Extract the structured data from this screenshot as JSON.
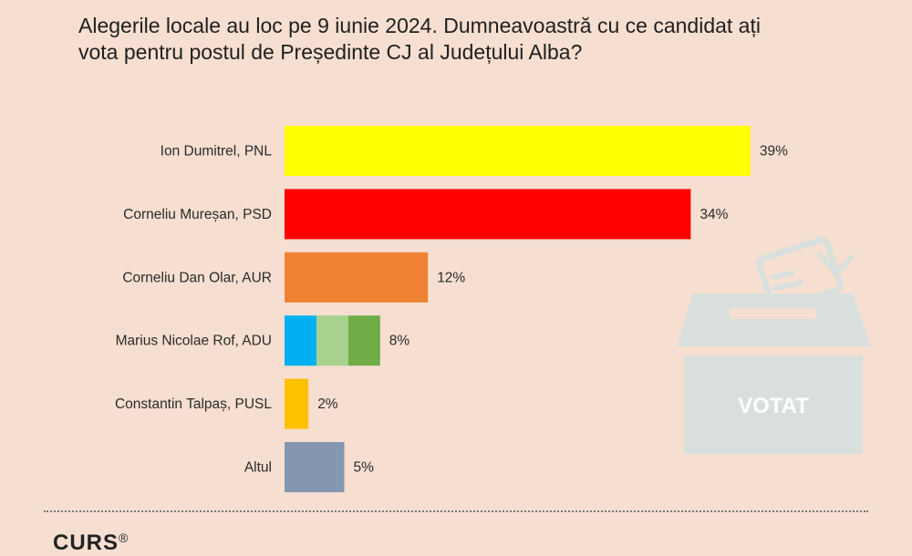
{
  "title": {
    "line1": "Alegerile locale au loc pe 9 iunie 2024. Dumneavoastră cu ce candidat ați",
    "line2": "vota pentru postul de Președinte CJ al Județului Alba?"
  },
  "illustration": {
    "icon": "ballot-box-icon",
    "text": "VOTAT",
    "color": "#d9dfdc"
  },
  "footer": {
    "logo_text": "CURS",
    "logo_mark": "®"
  },
  "chart_data": {
    "type": "bar",
    "orientation": "horizontal",
    "categories": [
      "Ion Dumitrel, PNL",
      "Corneliu Mureșan, PSD",
      "Corneliu Dan Olar, AUR",
      "Marius Nicolae Rof, ADU",
      "Constantin Talpaș, PUSL",
      "Altul"
    ],
    "values": [
      39,
      34,
      12,
      8,
      2,
      5
    ],
    "value_labels": [
      "39%",
      "34%",
      "12%",
      "8%",
      "2%",
      "5%"
    ],
    "colors": [
      [
        "#ffff00"
      ],
      [
        "#ff0000"
      ],
      [
        "#ef8132"
      ],
      [
        "#00b0f0",
        "#a9d18e",
        "#70ad47"
      ],
      [
        "#ffc000"
      ],
      [
        "#8497b0"
      ]
    ],
    "unit": "%"
  }
}
